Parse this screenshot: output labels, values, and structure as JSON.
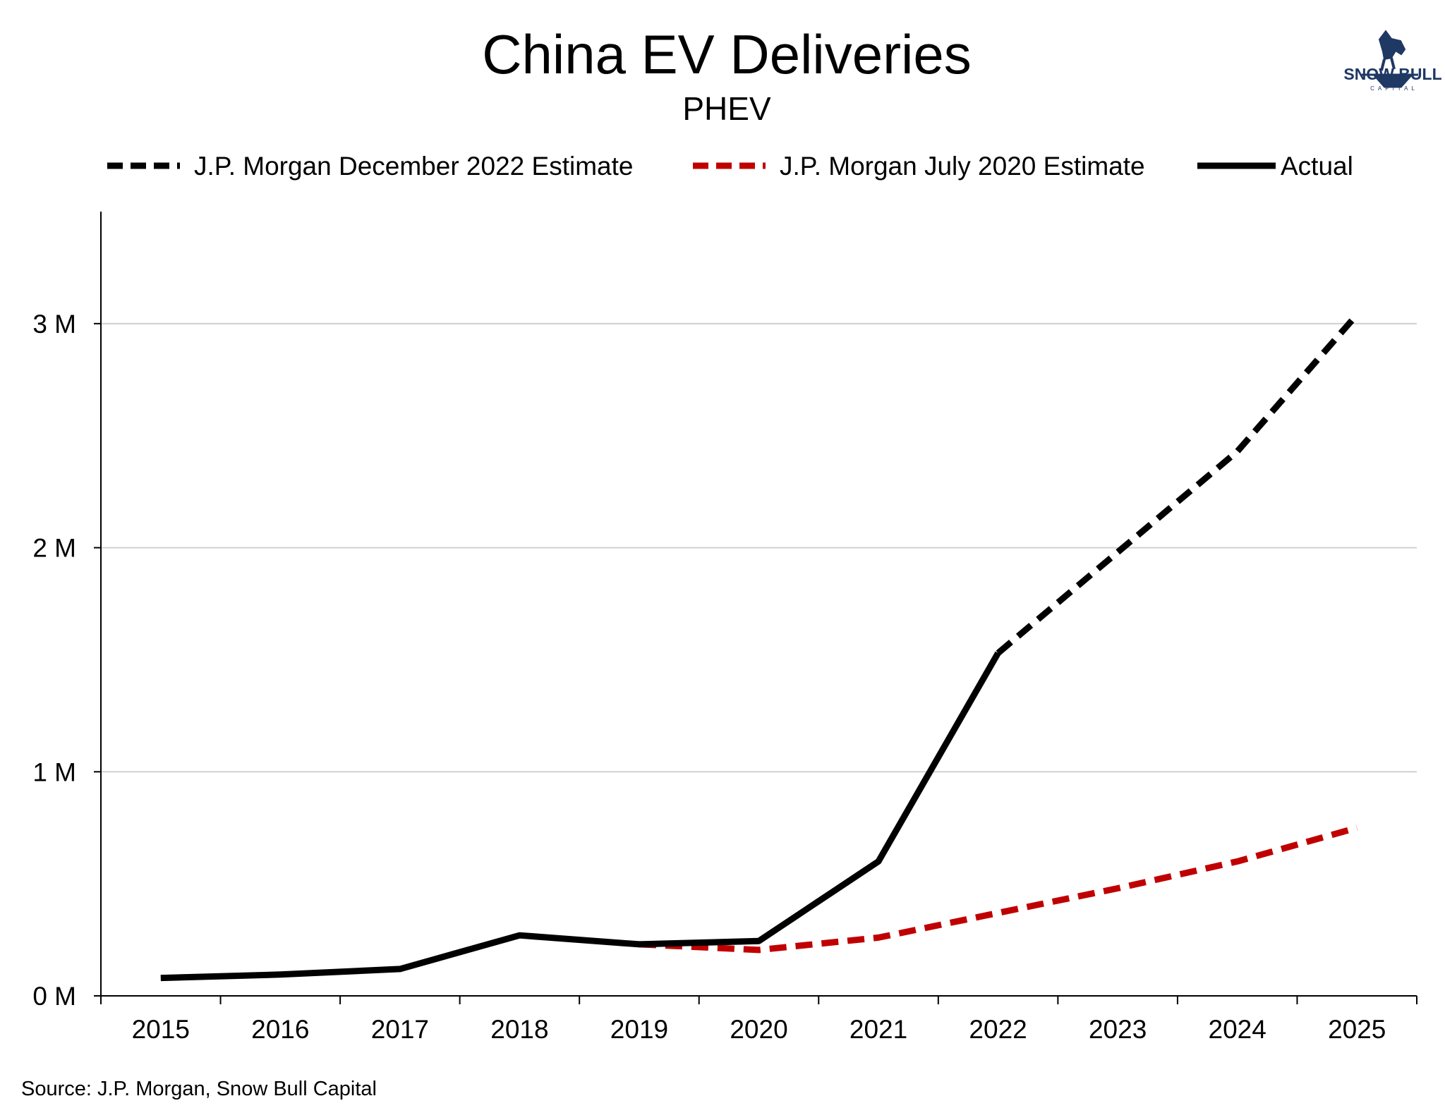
{
  "chart_data": {
    "type": "line",
    "title": "China EV Deliveries",
    "subtitle": "PHEV",
    "source": "Source: J.P. Morgan, Snow Bull Capital",
    "xlabel": "",
    "ylabel": "",
    "x": [
      2015,
      2016,
      2017,
      2018,
      2019,
      2020,
      2021,
      2022,
      2023,
      2024,
      2025
    ],
    "ylim": [
      0,
      3500000
    ],
    "y_ticks": [
      {
        "value": 0,
        "label": "0 M"
      },
      {
        "value": 1000000,
        "label": "1 M"
      },
      {
        "value": 2000000,
        "label": "2 M"
      },
      {
        "value": 3000000,
        "label": "3 M"
      }
    ],
    "grid": "horizontal",
    "legend_position": "top",
    "series": [
      {
        "name": "J.P. Morgan December 2022 Estimate",
        "style": "dashed",
        "color": "#000000",
        "points": [
          [
            2022,
            1530000
          ],
          [
            2023,
            1980000
          ],
          [
            2024,
            2430000
          ],
          [
            2025,
            3040000
          ]
        ]
      },
      {
        "name": "J.P. Morgan July 2020 Estimate",
        "style": "dashed",
        "color": "#c00000",
        "points": [
          [
            2019,
            230000
          ],
          [
            2020,
            205000
          ],
          [
            2021,
            260000
          ],
          [
            2022,
            370000
          ],
          [
            2023,
            480000
          ],
          [
            2024,
            600000
          ],
          [
            2025,
            750000
          ]
        ]
      },
      {
        "name": "Actual",
        "style": "solid",
        "color": "#000000",
        "points": [
          [
            2015,
            80000
          ],
          [
            2016,
            95000
          ],
          [
            2017,
            120000
          ],
          [
            2018,
            270000
          ],
          [
            2019,
            230000
          ],
          [
            2020,
            245000
          ],
          [
            2021,
            600000
          ],
          [
            2022,
            1530000
          ]
        ]
      }
    ]
  },
  "logo": {
    "name": "SNOW BULL",
    "subtitle": "CAPITAL",
    "color": "#1f3864",
    "icon": "bull-icon"
  }
}
